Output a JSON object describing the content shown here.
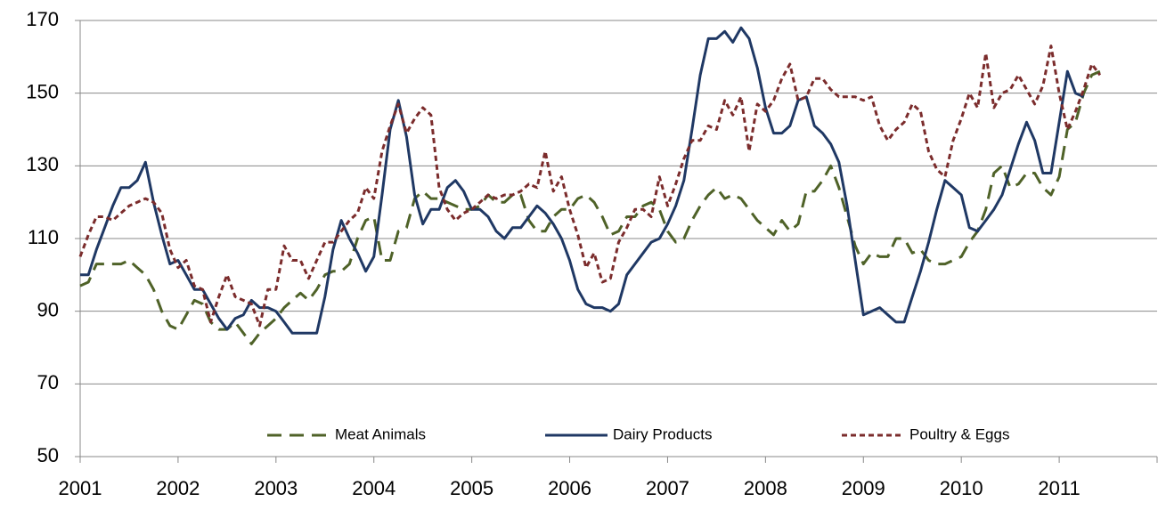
{
  "chart_data": {
    "type": "line",
    "categories": [
      "2001",
      null,
      null,
      null,
      null,
      null,
      null,
      null,
      null,
      null,
      null,
      null,
      "2002",
      null,
      null,
      null,
      null,
      null,
      null,
      null,
      null,
      null,
      null,
      null,
      "2003",
      null,
      null,
      null,
      null,
      null,
      null,
      null,
      null,
      null,
      null,
      null,
      "2004",
      null,
      null,
      null,
      null,
      null,
      null,
      null,
      null,
      null,
      null,
      null,
      "2005",
      null,
      null,
      null,
      null,
      null,
      null,
      null,
      null,
      null,
      null,
      null,
      "2006",
      null,
      null,
      null,
      null,
      null,
      null,
      null,
      null,
      null,
      null,
      null,
      "2007",
      null,
      null,
      null,
      null,
      null,
      null,
      null,
      null,
      null,
      null,
      null,
      "2008",
      null,
      null,
      null,
      null,
      null,
      null,
      null,
      null,
      null,
      null,
      null,
      "2009",
      null,
      null,
      null,
      null,
      null,
      null,
      null,
      null,
      null,
      null,
      null,
      "2010",
      null,
      null,
      null,
      null,
      null,
      null,
      null,
      null,
      null,
      null,
      null,
      "2011",
      null,
      null,
      null,
      null,
      null,
      null,
      null,
      null,
      null,
      null,
      null
    ],
    "series": [
      {
        "name": "Meat Animals",
        "color": "#4f6228",
        "dash": "long",
        "values": [
          97,
          98,
          103,
          103,
          103,
          103,
          104,
          102,
          100,
          96,
          90,
          86,
          85,
          89,
          93,
          92,
          87,
          85,
          85,
          87,
          84,
          81,
          84,
          86,
          88,
          91,
          93,
          95,
          93,
          96,
          100,
          101,
          101,
          103,
          110,
          115,
          116,
          104,
          104,
          112,
          113,
          121,
          123,
          121,
          121,
          120,
          119,
          118,
          118,
          119,
          122,
          120,
          120,
          122,
          122,
          115,
          112,
          112,
          116,
          118,
          118,
          121,
          122,
          120,
          116,
          111,
          112,
          116,
          116,
          119,
          120,
          118,
          112,
          109,
          110,
          115,
          119,
          122,
          124,
          121,
          122,
          121,
          118,
          115,
          113,
          111,
          115,
          112,
          114,
          123,
          123,
          126,
          130,
          124,
          116,
          108,
          103,
          106,
          105,
          105,
          110,
          110,
          106,
          107,
          104,
          103,
          103,
          104,
          105,
          109,
          112,
          118,
          128,
          130,
          124,
          125,
          128,
          128,
          124,
          122,
          127,
          140,
          142,
          150,
          155,
          156,
          null,
          null,
          null,
          null,
          null,
          null
        ]
      },
      {
        "name": "Dairy Products",
        "color": "#1f3864",
        "dash": "solid",
        "values": [
          100,
          100,
          107,
          113,
          119,
          124,
          124,
          126,
          131,
          120,
          111,
          103,
          104,
          100,
          96,
          96,
          92,
          88,
          85,
          88,
          89,
          93,
          91,
          91,
          90,
          87,
          84,
          84,
          84,
          84,
          94,
          107,
          115,
          110,
          106,
          101,
          105,
          122,
          140,
          148,
          138,
          122,
          114,
          118,
          118,
          124,
          126,
          123,
          118,
          118,
          116,
          112,
          110,
          113,
          113,
          116,
          119,
          117,
          114,
          110,
          104,
          96,
          92,
          91,
          91,
          90,
          92,
          100,
          103,
          106,
          109,
          110,
          114,
          119,
          126,
          140,
          155,
          165,
          165,
          167,
          164,
          168,
          165,
          157,
          146,
          139,
          139,
          141,
          148,
          149,
          141,
          139,
          136,
          131,
          119,
          104,
          89,
          90,
          91,
          89,
          87,
          87,
          94,
          101,
          109,
          118,
          126,
          124,
          122,
          113,
          112,
          115,
          118,
          122,
          129,
          136,
          142,
          137,
          128,
          128,
          142,
          156,
          150,
          149,
          null,
          null,
          null,
          null,
          null,
          null,
          null,
          null
        ]
      },
      {
        "name": "Poultry & Eggs",
        "color": "#7b2c2c",
        "dash": "short",
        "values": [
          105,
          111,
          116,
          116,
          115,
          117,
          119,
          120,
          121,
          120,
          117,
          107,
          102,
          104,
          97,
          96,
          87,
          94,
          100,
          94,
          93,
          92,
          86,
          96,
          96,
          108,
          104,
          104,
          99,
          104,
          109,
          109,
          112,
          115,
          117,
          124,
          121,
          134,
          141,
          147,
          139,
          143,
          146,
          144,
          124,
          118,
          115,
          117,
          118,
          120,
          122,
          121,
          122,
          122,
          123,
          125,
          124,
          134,
          123,
          127,
          118,
          111,
          102,
          106,
          98,
          99,
          109,
          113,
          118,
          118,
          116,
          127,
          119,
          125,
          132,
          137,
          137,
          141,
          140,
          148,
          144,
          149,
          134,
          147,
          145,
          148,
          154,
          158,
          148,
          149,
          154,
          154,
          151,
          149,
          149,
          149,
          148,
          149,
          141,
          137,
          140,
          142,
          147,
          145,
          134,
          129,
          127,
          137,
          143,
          150,
          146,
          161,
          146,
          150,
          151,
          155,
          151,
          147,
          152,
          163,
          150,
          140,
          145,
          151,
          158,
          155,
          null,
          null,
          null,
          null,
          null,
          null
        ]
      }
    ],
    "ylim": [
      50,
      170
    ],
    "yticks": [
      50,
      70,
      90,
      110,
      130,
      150,
      170
    ],
    "grid": true,
    "legend": "lower center"
  }
}
